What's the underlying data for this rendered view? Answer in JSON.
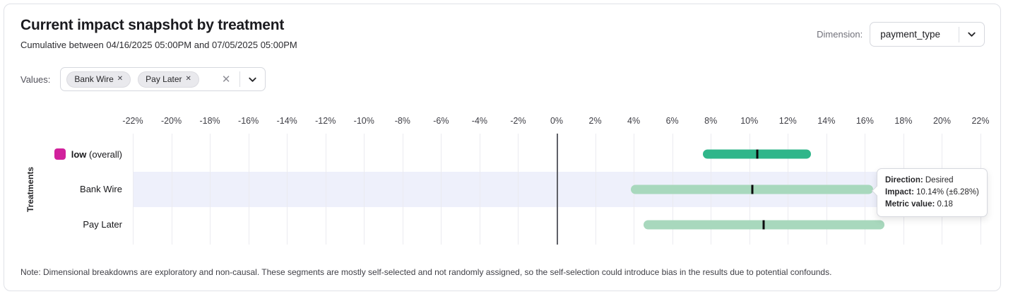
{
  "header": {
    "title": "Current impact snapshot by treatment",
    "subtitle": "Cumulative between 04/16/2025 05:00PM and 07/05/2025 05:00PM"
  },
  "dimension": {
    "label": "Dimension:",
    "selected": "payment_type"
  },
  "filters": {
    "label": "Values:",
    "chips": [
      {
        "label": "Bank Wire",
        "remove_icon": "✕"
      },
      {
        "label": "Pay Later",
        "remove_icon": "✕"
      }
    ],
    "clear_icon": "✕"
  },
  "chart_data": {
    "type": "bar",
    "subtype": "horizontal-interval-with-center-marker",
    "title": "Current impact snapshot by treatment",
    "xlabel": "",
    "ylabel": "Treatments",
    "xlim": [
      -22,
      22
    ],
    "grid": true,
    "zero_line_color": "#5f6067",
    "highlight_color": "#eef0fb",
    "ticks": [
      {
        "value": -22,
        "label": "-22%"
      },
      {
        "value": -20,
        "label": "-20%"
      },
      {
        "value": -18,
        "label": "-18%"
      },
      {
        "value": -16,
        "label": "-16%"
      },
      {
        "value": -14,
        "label": "-14%"
      },
      {
        "value": -12,
        "label": "-12%"
      },
      {
        "value": -10,
        "label": "-10%"
      },
      {
        "value": -8,
        "label": "-8%"
      },
      {
        "value": -6,
        "label": "-6%"
      },
      {
        "value": -4,
        "label": "-4%"
      },
      {
        "value": -2,
        "label": "-2%"
      },
      {
        "value": 0,
        "label": "0%"
      },
      {
        "value": 2,
        "label": "2%"
      },
      {
        "value": 4,
        "label": "4%"
      },
      {
        "value": 6,
        "label": "6%"
      },
      {
        "value": 8,
        "label": "8%"
      },
      {
        "value": 10,
        "label": "10%"
      },
      {
        "value": 12,
        "label": "12%"
      },
      {
        "value": 14,
        "label": "14%"
      },
      {
        "value": 16,
        "label": "16%"
      },
      {
        "value": 18,
        "label": "18%"
      },
      {
        "value": 20,
        "label": "20%"
      },
      {
        "value": 22,
        "label": "22%"
      }
    ],
    "rows": [
      {
        "label": "low",
        "label_suffix": " (overall)",
        "legend_color": "#d1219c",
        "bar_color": "#2fb68a",
        "low": 7.6,
        "high": 13.2,
        "value": 10.4,
        "highlighted": false
      },
      {
        "label": "Bank Wire",
        "bar_color": "#a8d8bd",
        "low": 3.86,
        "high": 16.42,
        "value": 10.14,
        "highlighted": true
      },
      {
        "label": "Pay Later",
        "bar_color": "#a8d8bd",
        "low": 4.5,
        "high": 17.0,
        "value": 10.75,
        "highlighted": false
      }
    ]
  },
  "tooltip": {
    "direction_label": "Direction:",
    "direction_value": "Desired",
    "impact_label": "Impact:",
    "impact_value": "10.14% (±6.28%)",
    "metric_label": "Metric value:",
    "metric_value": "0.18"
  },
  "note": "Note: Dimensional breakdowns are exploratory and non-causal. These segments are mostly self-selected and not randomly assigned, so the self-selection could introduce bias in the results due to potential confounds."
}
